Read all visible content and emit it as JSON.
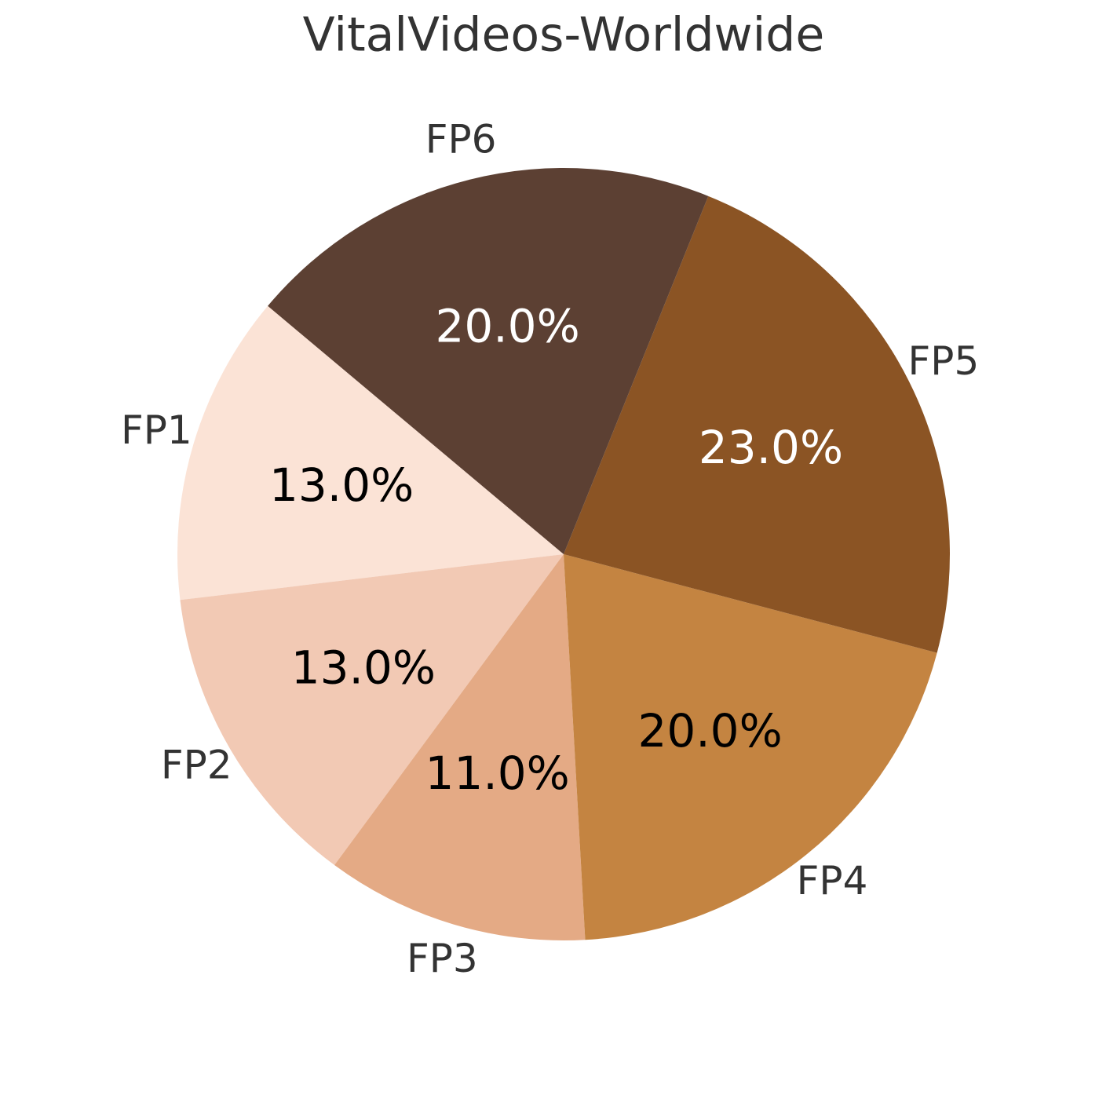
{
  "chart_data": {
    "type": "pie",
    "title": "VitalVideos-Worldwide",
    "categories": [
      "FP1",
      "FP2",
      "FP3",
      "FP4",
      "FP5",
      "FP6"
    ],
    "values": [
      13,
      13,
      11,
      20,
      23,
      20
    ],
    "value_labels": [
      "13.0%",
      "13.0%",
      "11.0%",
      "20.0%",
      "23.0%",
      "20.0%"
    ],
    "colors": [
      "#fbe3d6",
      "#f2c9b4",
      "#e4aa85",
      "#c48441",
      "#8b5424",
      "#5c4033"
    ]
  }
}
